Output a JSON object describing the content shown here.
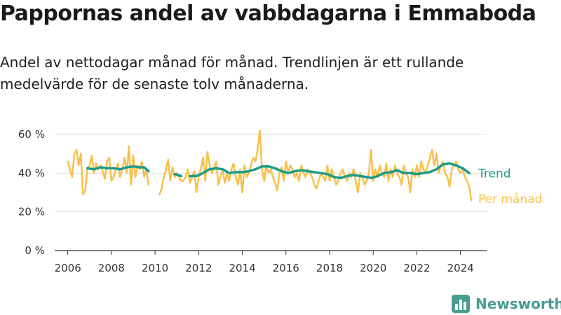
{
  "title": "Pappornas andel av vabbdagarna i Emmaboda",
  "subtitle": "Andel av nettodagar månad för månad. Trendlinjen är ett rullande medelvärde för de senaste tolv månaderna.",
  "brand": "Newsworthy",
  "colors": {
    "monthly": "#f9c04a",
    "trend": "#1a9c8a",
    "axis": "#333333",
    "grid": "#dddddd",
    "brand": "#4a9c8e"
  },
  "chart_data": {
    "type": "line",
    "xlim": [
      2005.4,
      2025.2
    ],
    "ylim": [
      0,
      60
    ],
    "x_ticks": [
      2006,
      2008,
      2010,
      2012,
      2014,
      2016,
      2018,
      2020,
      2022,
      2024
    ],
    "x_tick_labels": [
      "2006",
      "2008",
      "2010",
      "2012",
      "2014",
      "2016",
      "2018",
      "2020",
      "2022",
      "2024"
    ],
    "y_ticks": [
      0,
      20,
      40,
      60
    ],
    "y_tick_labels": [
      "0 %",
      "20 %",
      "40 %",
      "60 %"
    ],
    "grid": "horizontal",
    "legend": "end-labels",
    "series": [
      {
        "name": "Per månad",
        "color": "#f9c04a",
        "points": [
          [
            2006.0,
            46
          ],
          [
            2006.1,
            42
          ],
          [
            2006.2,
            38
          ],
          [
            2006.3,
            50
          ],
          [
            2006.4,
            52
          ],
          [
            2006.5,
            44
          ],
          [
            2006.6,
            50
          ],
          [
            2006.7,
            29
          ],
          [
            2006.8,
            31
          ],
          [
            2006.9,
            42
          ],
          [
            2007.0,
            44
          ],
          [
            2007.1,
            49
          ],
          [
            2007.2,
            40
          ],
          [
            2007.3,
            45
          ],
          [
            2007.4,
            42
          ],
          [
            2007.5,
            44
          ],
          [
            2007.6,
            41
          ],
          [
            2007.7,
            37
          ],
          [
            2007.8,
            46
          ],
          [
            2007.9,
            48
          ],
          [
            2008.0,
            36
          ],
          [
            2008.1,
            38
          ],
          [
            2008.2,
            42
          ],
          [
            2008.3,
            45
          ],
          [
            2008.4,
            38
          ],
          [
            2008.5,
            42
          ],
          [
            2008.6,
            48
          ],
          [
            2008.7,
            40
          ],
          [
            2008.8,
            54
          ],
          [
            2008.9,
            34
          ],
          [
            2009.0,
            49
          ],
          [
            2009.1,
            38
          ],
          [
            2009.2,
            44
          ],
          [
            2009.3,
            42
          ],
          [
            2009.4,
            46
          ],
          [
            2009.5,
            38
          ],
          [
            2009.6,
            42
          ],
          [
            2009.7,
            34
          ],
          [
            2010.2,
            29
          ],
          [
            2010.3,
            32
          ],
          [
            2010.4,
            38
          ],
          [
            2010.5,
            42
          ],
          [
            2010.6,
            47
          ],
          [
            2010.7,
            36
          ],
          [
            2010.8,
            43
          ],
          [
            2010.9,
            38
          ],
          [
            2011.0,
            40
          ],
          [
            2011.1,
            38
          ],
          [
            2011.2,
            36
          ],
          [
            2011.3,
            36
          ],
          [
            2011.4,
            38
          ],
          [
            2011.5,
            42
          ],
          [
            2011.6,
            35
          ],
          [
            2011.7,
            38
          ],
          [
            2011.8,
            41
          ],
          [
            2011.9,
            30
          ],
          [
            2012.0,
            38
          ],
          [
            2012.1,
            42
          ],
          [
            2012.2,
            48
          ],
          [
            2012.3,
            36
          ],
          [
            2012.4,
            51
          ],
          [
            2012.5,
            44
          ],
          [
            2012.6,
            40
          ],
          [
            2012.7,
            42
          ],
          [
            2012.8,
            46
          ],
          [
            2012.9,
            34
          ],
          [
            2013.0,
            38
          ],
          [
            2013.1,
            42
          ],
          [
            2013.2,
            35
          ],
          [
            2013.3,
            40
          ],
          [
            2013.4,
            36
          ],
          [
            2013.5,
            42
          ],
          [
            2013.6,
            45
          ],
          [
            2013.7,
            38
          ],
          [
            2013.8,
            34
          ],
          [
            2013.9,
            42
          ],
          [
            2014.0,
            30
          ],
          [
            2014.1,
            44
          ],
          [
            2014.2,
            38
          ],
          [
            2014.3,
            40
          ],
          [
            2014.4,
            44
          ],
          [
            2014.5,
            48
          ],
          [
            2014.6,
            46
          ],
          [
            2014.7,
            52
          ],
          [
            2014.8,
            62
          ],
          [
            2014.9,
            42
          ],
          [
            2015.0,
            36
          ],
          [
            2015.1,
            44
          ],
          [
            2015.2,
            40
          ],
          [
            2015.3,
            42
          ],
          [
            2015.4,
            38
          ],
          [
            2015.5,
            35
          ],
          [
            2015.6,
            31
          ],
          [
            2015.7,
            40
          ],
          [
            2015.8,
            43
          ],
          [
            2015.9,
            36
          ],
          [
            2016.0,
            46
          ],
          [
            2016.1,
            40
          ],
          [
            2016.2,
            44
          ],
          [
            2016.3,
            42
          ],
          [
            2016.4,
            38
          ],
          [
            2016.5,
            40
          ],
          [
            2016.6,
            36
          ],
          [
            2016.7,
            44
          ],
          [
            2016.8,
            40
          ],
          [
            2016.9,
            38
          ],
          [
            2017.0,
            42
          ],
          [
            2017.1,
            40
          ],
          [
            2017.2,
            38
          ],
          [
            2017.3,
            34
          ],
          [
            2017.4,
            32
          ],
          [
            2017.5,
            36
          ],
          [
            2017.6,
            40
          ],
          [
            2017.7,
            38
          ],
          [
            2017.8,
            36
          ],
          [
            2017.9,
            44
          ],
          [
            2018.0,
            36
          ],
          [
            2018.1,
            42
          ],
          [
            2018.2,
            38
          ],
          [
            2018.3,
            34
          ],
          [
            2018.4,
            36
          ],
          [
            2018.5,
            40
          ],
          [
            2018.6,
            42
          ],
          [
            2018.7,
            38
          ],
          [
            2018.8,
            36
          ],
          [
            2018.9,
            40
          ],
          [
            2019.0,
            38
          ],
          [
            2019.1,
            42
          ],
          [
            2019.2,
            36
          ],
          [
            2019.3,
            30
          ],
          [
            2019.4,
            40
          ],
          [
            2019.5,
            38
          ],
          [
            2019.6,
            34
          ],
          [
            2019.7,
            36
          ],
          [
            2019.8,
            40
          ],
          [
            2019.9,
            52
          ],
          [
            2020.0,
            36
          ],
          [
            2020.1,
            42
          ],
          [
            2020.2,
            38
          ],
          [
            2020.3,
            44
          ],
          [
            2020.4,
            40
          ],
          [
            2020.5,
            38
          ],
          [
            2020.6,
            45
          ],
          [
            2020.7,
            36
          ],
          [
            2020.8,
            42
          ],
          [
            2020.9,
            38
          ],
          [
            2021.0,
            44
          ],
          [
            2021.1,
            40
          ],
          [
            2021.2,
            38
          ],
          [
            2021.3,
            34
          ],
          [
            2021.4,
            44
          ],
          [
            2021.5,
            40
          ],
          [
            2021.6,
            38
          ],
          [
            2021.7,
            30
          ],
          [
            2021.8,
            42
          ],
          [
            2021.9,
            38
          ],
          [
            2022.0,
            44
          ],
          [
            2022.1,
            38
          ],
          [
            2022.2,
            46
          ],
          [
            2022.3,
            42
          ],
          [
            2022.4,
            40
          ],
          [
            2022.5,
            44
          ],
          [
            2022.6,
            48
          ],
          [
            2022.7,
            52
          ],
          [
            2022.8,
            44
          ],
          [
            2022.9,
            50
          ],
          [
            2023.0,
            40
          ],
          [
            2023.1,
            44
          ],
          [
            2023.2,
            46
          ],
          [
            2023.3,
            40
          ],
          [
            2023.4,
            38
          ],
          [
            2023.5,
            33
          ],
          [
            2023.6,
            42
          ],
          [
            2023.7,
            44
          ],
          [
            2023.8,
            46
          ],
          [
            2023.9,
            42
          ],
          [
            2024.0,
            40
          ],
          [
            2024.1,
            42
          ],
          [
            2024.2,
            38
          ],
          [
            2024.3,
            36
          ],
          [
            2024.4,
            33
          ],
          [
            2024.5,
            26
          ]
        ]
      },
      {
        "name": "Trend",
        "color": "#1a9c8a",
        "points": [
          [
            2006.9,
            42.5
          ],
          [
            2007.2,
            42
          ],
          [
            2007.5,
            43
          ],
          [
            2007.8,
            42.5
          ],
          [
            2008.1,
            42.5
          ],
          [
            2008.4,
            42
          ],
          [
            2008.7,
            43
          ],
          [
            2009.0,
            43.5
          ],
          [
            2009.3,
            43
          ],
          [
            2009.5,
            43
          ],
          [
            2009.7,
            41
          ],
          [
            2010.5,
            39
          ],
          [
            2010.9,
            39.5
          ],
          [
            2011.2,
            38.5
          ],
          [
            2011.6,
            38.5
          ],
          [
            2011.9,
            38.5
          ],
          [
            2012.2,
            40
          ],
          [
            2012.5,
            42
          ],
          [
            2012.8,
            42.5
          ],
          [
            2013.1,
            42
          ],
          [
            2013.4,
            40
          ],
          [
            2013.7,
            40.5
          ],
          [
            2014.0,
            40.5
          ],
          [
            2014.3,
            41
          ],
          [
            2014.6,
            42
          ],
          [
            2014.9,
            43.5
          ],
          [
            2015.2,
            43.5
          ],
          [
            2015.5,
            42.5
          ],
          [
            2015.8,
            41
          ],
          [
            2016.1,
            40
          ],
          [
            2016.4,
            41
          ],
          [
            2016.7,
            41.5
          ],
          [
            2017.0,
            41
          ],
          [
            2017.3,
            40.5
          ],
          [
            2017.6,
            40
          ],
          [
            2017.9,
            39.5
          ],
          [
            2018.2,
            38
          ],
          [
            2018.5,
            37.5
          ],
          [
            2018.8,
            38.5
          ],
          [
            2019.1,
            39
          ],
          [
            2019.4,
            38.5
          ],
          [
            2019.7,
            38
          ],
          [
            2019.9,
            37.5
          ],
          [
            2020.2,
            38.5
          ],
          [
            2020.5,
            40
          ],
          [
            2020.8,
            40.5
          ],
          [
            2021.1,
            41.5
          ],
          [
            2021.4,
            40
          ],
          [
            2021.7,
            40
          ],
          [
            2022.0,
            39.5
          ],
          [
            2022.3,
            40
          ],
          [
            2022.6,
            40.5
          ],
          [
            2022.9,
            42
          ],
          [
            2023.2,
            44.5
          ],
          [
            2023.5,
            45
          ],
          [
            2023.8,
            44
          ],
          [
            2024.1,
            42.5
          ],
          [
            2024.4,
            40
          ]
        ]
      }
    ]
  }
}
